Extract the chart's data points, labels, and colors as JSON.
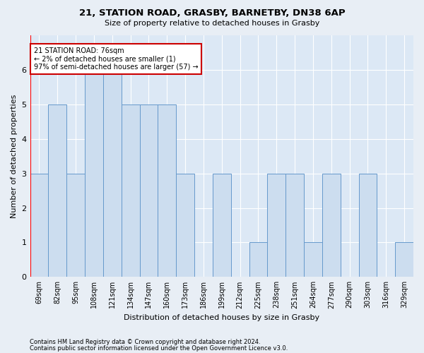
{
  "title": "21, STATION ROAD, GRASBY, BARNETBY, DN38 6AP",
  "subtitle": "Size of property relative to detached houses in Grasby",
  "xlabel": "Distribution of detached houses by size in Grasby",
  "ylabel": "Number of detached properties",
  "footer1": "Contains HM Land Registry data © Crown copyright and database right 2024.",
  "footer2": "Contains public sector information licensed under the Open Government Licence v3.0.",
  "categories": [
    "69sqm",
    "82sqm",
    "95sqm",
    "108sqm",
    "121sqm",
    "134sqm",
    "147sqm",
    "160sqm",
    "173sqm",
    "186sqm",
    "199sqm",
    "212sqm",
    "225sqm",
    "238sqm",
    "251sqm",
    "264sqm",
    "277sqm",
    "290sqm",
    "303sqm",
    "316sqm",
    "329sqm"
  ],
  "values": [
    3,
    5,
    3,
    6,
    6,
    5,
    5,
    5,
    3,
    0,
    3,
    0,
    1,
    3,
    3,
    1,
    3,
    0,
    3,
    0,
    1
  ],
  "bar_color": "#ccddef",
  "bar_edge_color": "#6699cc",
  "bar_edge_width": 0.7,
  "background_color": "#e8eef5",
  "plot_bg_color": "#dce8f5",
  "grid_color": "#ffffff",
  "annotation_text": "21 STATION ROAD: 76sqm\n← 2% of detached houses are smaller (1)\n97% of semi-detached houses are larger (57) →",
  "annotation_box_color": "#ffffff",
  "annotation_box_edge_color": "#cc0000",
  "ylim": [
    0,
    7
  ],
  "yticks": [
    0,
    1,
    2,
    3,
    4,
    5,
    6,
    7
  ],
  "title_fontsize": 9.5,
  "subtitle_fontsize": 8,
  "ylabel_fontsize": 8,
  "xlabel_fontsize": 8,
  "tick_fontsize": 7,
  "footer_fontsize": 6
}
